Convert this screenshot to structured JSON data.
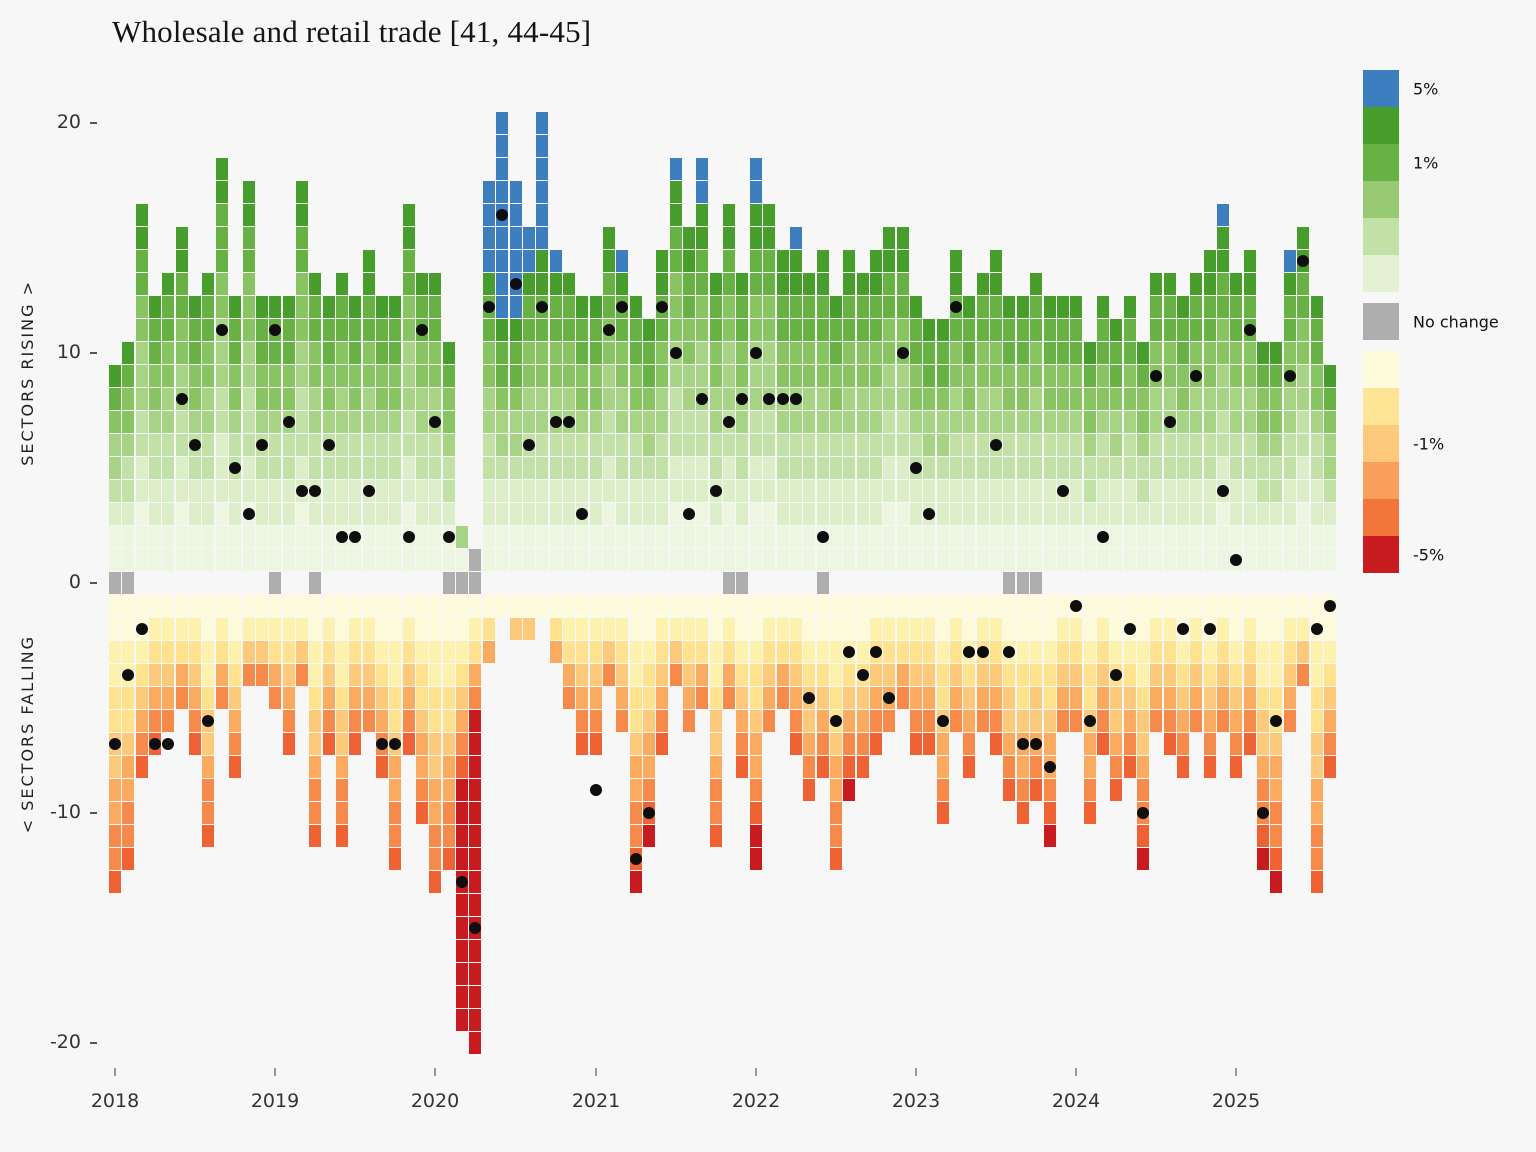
{
  "title": "Wholesale and retail trade [41, 44-45]",
  "axes": {
    "left_label_top": "SECTORS RISING >",
    "left_label_bottom": "< SECTORS FALLING",
    "y_ticks": [
      20,
      10,
      0,
      -10,
      -20
    ],
    "x_ticks": [
      "2018",
      "2019",
      "2020",
      "2021",
      "2022",
      "2023",
      "2024",
      "2025"
    ]
  },
  "palette": {
    "background": "#f7f7f8",
    "blue": "#3d7ebf",
    "green_ramp": [
      "#edf6e1",
      "#dbeec7",
      "#c2e1a6",
      "#a6d384",
      "#88c462",
      "#68b245",
      "#489e2d"
    ],
    "gray": "#aeaeae",
    "warm_ramp": [
      "#fdfbd9",
      "#fdf2ad",
      "#fee28e",
      "#fdca7b",
      "#fbab60",
      "#f68a4b",
      "#ee6233"
    ],
    "deep_red": "#c81b20",
    "dot": "#0e0e0e"
  },
  "legend": {
    "items": [
      {
        "color": "#3d7ebf",
        "label": "5%",
        "gap_before": false
      },
      {
        "color": "#489e2d",
        "label": "",
        "gap_before": false
      },
      {
        "color": "#68b245",
        "label": "1%",
        "gap_before": false
      },
      {
        "color": "#96c971",
        "label": "",
        "gap_before": false
      },
      {
        "color": "#c2e1a6",
        "label": "",
        "gap_before": false
      },
      {
        "color": "#e4f1d4",
        "label": "",
        "gap_before": false
      },
      {
        "color": "#aeaeae",
        "label": "No change",
        "gap_before": true
      },
      {
        "color": "#fdfbd9",
        "label": "",
        "gap_before": true
      },
      {
        "color": "#fee595",
        "label": "",
        "gap_before": false
      },
      {
        "color": "#fdca7b",
        "label": "-1%",
        "gap_before": false
      },
      {
        "color": "#f9a15c",
        "label": "",
        "gap_before": false
      },
      {
        "color": "#f2763c",
        "label": "",
        "gap_before": false
      },
      {
        "color": "#c81b20",
        "label": "-5%",
        "gap_before": false
      }
    ]
  },
  "chart_data": {
    "type": "heatmap",
    "subtype": "diffusion-tile-stack with black net-balance dots",
    "title": "Wholesale and retail trade [41, 44-45]",
    "xlabel": "",
    "ylabel_top": "SECTORS RISING >",
    "ylabel_bottom": "< SECTORS FALLING",
    "ylim": [
      -21,
      21
    ],
    "x_range": [
      "2018-01",
      "2025-08"
    ],
    "encoding": {
      "m": "month",
      "r": "count of sectors rising (green tiles above zero, darker = larger rise)",
      "b": "of which rising more than 5% (blue tiles at top of stack)",
      "f": "count of sectors falling (yellow/orange tiles below zero, darker = larger fall)",
      "dr": "of which falling more than 5% (deep red tiles at bottom of stack)",
      "g": "count of no-change sectors (gray tiles at zero line)",
      "d": "black dot overlay value (net balance, axis units)"
    },
    "months": [
      {
        "m": "2018-01",
        "r": 9,
        "f": 13,
        "g": 1,
        "d": -7
      },
      {
        "m": "2018-02",
        "r": 10,
        "f": 12,
        "g": 1,
        "d": -4
      },
      {
        "m": "2018-03",
        "r": 16,
        "f": 8,
        "d": -2
      },
      {
        "m": "2018-04",
        "r": 12,
        "f": 7,
        "d": -7
      },
      {
        "m": "2018-05",
        "r": 13,
        "f": 6,
        "d": -7
      },
      {
        "m": "2018-06",
        "r": 15,
        "f": 5,
        "d": 8
      },
      {
        "m": "2018-07",
        "r": 12,
        "f": 7,
        "d": 6
      },
      {
        "m": "2018-08",
        "r": 13,
        "f": 11,
        "d": -6
      },
      {
        "m": "2018-09",
        "r": 18,
        "f": 5,
        "d": 11
      },
      {
        "m": "2018-10",
        "r": 12,
        "f": 8,
        "d": 5
      },
      {
        "m": "2018-11",
        "r": 17,
        "f": 4,
        "d": 3
      },
      {
        "m": "2018-12",
        "r": 12,
        "f": 4,
        "d": 6
      },
      {
        "m": "2019-01",
        "r": 12,
        "f": 5,
        "g": 1,
        "d": 11
      },
      {
        "m": "2019-02",
        "r": 12,
        "f": 7,
        "d": 7
      },
      {
        "m": "2019-03",
        "r": 17,
        "f": 4,
        "d": 4
      },
      {
        "m": "2019-04",
        "r": 13,
        "f": 11,
        "g": 1,
        "d": 4
      },
      {
        "m": "2019-05",
        "r": 12,
        "f": 7,
        "d": 6
      },
      {
        "m": "2019-06",
        "r": 13,
        "f": 11,
        "d": 2
      },
      {
        "m": "2019-07",
        "r": 12,
        "f": 7,
        "d": 2
      },
      {
        "m": "2019-08",
        "r": 14,
        "f": 6,
        "d": 4
      },
      {
        "m": "2019-09",
        "r": 12,
        "f": 8,
        "d": -7
      },
      {
        "m": "2019-10",
        "r": 12,
        "f": 12,
        "d": -7
      },
      {
        "m": "2019-11",
        "r": 16,
        "f": 7,
        "d": 2
      },
      {
        "m": "2019-12",
        "r": 13,
        "f": 10,
        "d": 11
      },
      {
        "m": "2020-01",
        "r": 13,
        "f": 13,
        "d": 7
      },
      {
        "m": "2020-02",
        "r": 10,
        "f": 12,
        "g": 1,
        "d": 2
      },
      {
        "m": "2020-03",
        "r": 2,
        "f": 19,
        "dr": 11,
        "g": 1,
        "d": -13
      },
      {
        "m": "2020-04",
        "r": 1,
        "f": 20,
        "dr": 15,
        "g": 2,
        "d": -15
      },
      {
        "m": "2020-05",
        "r": 17,
        "b": 4,
        "f": 3,
        "d": 12
      },
      {
        "m": "2020-06",
        "r": 20,
        "b": 9,
        "f": 1,
        "d": 16
      },
      {
        "m": "2020-07",
        "r": 17,
        "b": 6,
        "f": 2,
        "d": 13
      },
      {
        "m": "2020-08",
        "r": 15,
        "b": 2,
        "f": 2,
        "d": 6
      },
      {
        "m": "2020-09",
        "r": 20,
        "b": 6,
        "f": 1,
        "d": 12
      },
      {
        "m": "2020-10",
        "r": 14,
        "b": 1,
        "f": 3,
        "d": 7
      },
      {
        "m": "2020-11",
        "r": 13,
        "f": 5,
        "d": 7
      },
      {
        "m": "2020-12",
        "r": 12,
        "f": 7,
        "d": 3
      },
      {
        "m": "2021-01",
        "r": 12,
        "f": 7,
        "d": -9
      },
      {
        "m": "2021-02",
        "r": 15,
        "f": 4,
        "d": 11
      },
      {
        "m": "2021-03",
        "r": 14,
        "b": 1,
        "f": 6,
        "d": 12
      },
      {
        "m": "2021-04",
        "r": 12,
        "f": 13,
        "dr": 1,
        "d": -12
      },
      {
        "m": "2021-05",
        "r": 11,
        "f": 11,
        "dr": 1,
        "d": -10
      },
      {
        "m": "2021-06",
        "r": 14,
        "f": 7,
        "d": 12
      },
      {
        "m": "2021-07",
        "r": 18,
        "b": 1,
        "f": 4,
        "d": 10
      },
      {
        "m": "2021-08",
        "r": 15,
        "f": 6,
        "d": 3
      },
      {
        "m": "2021-09",
        "r": 18,
        "b": 2,
        "f": 5,
        "d": 8
      },
      {
        "m": "2021-10",
        "r": 13,
        "f": 11,
        "d": 4
      },
      {
        "m": "2021-11",
        "r": 16,
        "f": 5,
        "g": 1,
        "d": 7
      },
      {
        "m": "2021-12",
        "r": 13,
        "f": 8,
        "g": 1,
        "d": 8
      },
      {
        "m": "2022-01",
        "r": 18,
        "b": 2,
        "f": 12,
        "dr": 2,
        "d": 10
      },
      {
        "m": "2022-02",
        "r": 16,
        "f": 6,
        "d": 8
      },
      {
        "m": "2022-03",
        "r": 14,
        "f": 5,
        "d": 8
      },
      {
        "m": "2022-04",
        "r": 15,
        "b": 1,
        "f": 7,
        "d": 8
      },
      {
        "m": "2022-05",
        "r": 13,
        "f": 9,
        "d": -5
      },
      {
        "m": "2022-06",
        "r": 14,
        "f": 8,
        "g": 1,
        "d": 2
      },
      {
        "m": "2022-07",
        "r": 12,
        "f": 12,
        "d": -6
      },
      {
        "m": "2022-08",
        "r": 14,
        "f": 9,
        "dr": 1,
        "d": -3
      },
      {
        "m": "2022-09",
        "r": 13,
        "f": 8,
        "d": -4
      },
      {
        "m": "2022-10",
        "r": 14,
        "f": 7,
        "d": -3
      },
      {
        "m": "2022-11",
        "r": 15,
        "f": 6,
        "d": -5
      },
      {
        "m": "2022-12",
        "r": 15,
        "f": 5,
        "d": 10
      },
      {
        "m": "2023-01",
        "r": 12,
        "f": 7,
        "d": 5
      },
      {
        "m": "2023-02",
        "r": 11,
        "f": 7,
        "d": 3
      },
      {
        "m": "2023-03",
        "r": 11,
        "f": 10,
        "d": -6
      },
      {
        "m": "2023-04",
        "r": 14,
        "f": 6,
        "d": 12
      },
      {
        "m": "2023-05",
        "r": 12,
        "f": 8,
        "d": -3
      },
      {
        "m": "2023-06",
        "r": 13,
        "f": 6,
        "d": -3
      },
      {
        "m": "2023-07",
        "r": 14,
        "f": 7,
        "d": 6
      },
      {
        "m": "2023-08",
        "r": 12,
        "f": 9,
        "g": 1,
        "d": -3
      },
      {
        "m": "2023-09",
        "r": 12,
        "f": 10,
        "g": 1,
        "d": -7
      },
      {
        "m": "2023-10",
        "r": 13,
        "f": 9,
        "g": 1,
        "d": -7
      },
      {
        "m": "2023-11",
        "r": 12,
        "f": 11,
        "dr": 1,
        "d": -8
      },
      {
        "m": "2023-12",
        "r": 12,
        "f": 6,
        "d": 4
      },
      {
        "m": "2024-01",
        "r": 12,
        "f": 6,
        "d": -1
      },
      {
        "m": "2024-02",
        "r": 10,
        "f": 10,
        "d": -6
      },
      {
        "m": "2024-03",
        "r": 12,
        "f": 7,
        "d": 2
      },
      {
        "m": "2024-04",
        "r": 11,
        "f": 9,
        "d": -4
      },
      {
        "m": "2024-05",
        "r": 12,
        "f": 8,
        "d": -2
      },
      {
        "m": "2024-06",
        "r": 10,
        "f": 12,
        "dr": 1,
        "d": -10
      },
      {
        "m": "2024-07",
        "r": 13,
        "f": 6,
        "d": 9
      },
      {
        "m": "2024-08",
        "r": 13,
        "f": 7,
        "d": 7
      },
      {
        "m": "2024-09",
        "r": 12,
        "f": 8,
        "d": -2
      },
      {
        "m": "2024-10",
        "r": 13,
        "f": 6,
        "d": 9
      },
      {
        "m": "2024-11",
        "r": 14,
        "f": 8,
        "d": -2
      },
      {
        "m": "2024-12",
        "r": 16,
        "b": 1,
        "f": 6,
        "d": 4
      },
      {
        "m": "2025-01",
        "r": 13,
        "f": 8,
        "d": 1
      },
      {
        "m": "2025-02",
        "r": 14,
        "f": 7,
        "d": 11
      },
      {
        "m": "2025-03",
        "r": 10,
        "f": 12,
        "dr": 1,
        "d": -10
      },
      {
        "m": "2025-04",
        "r": 10,
        "f": 13,
        "dr": 1,
        "d": -6
      },
      {
        "m": "2025-05",
        "r": 14,
        "b": 1,
        "f": 6,
        "d": 9
      },
      {
        "m": "2025-06",
        "r": 15,
        "f": 4,
        "d": 14
      },
      {
        "m": "2025-07",
        "r": 12,
        "f": 13,
        "d": -2
      },
      {
        "m": "2025-08",
        "r": 9,
        "f": 8,
        "d": -1
      }
    ]
  }
}
